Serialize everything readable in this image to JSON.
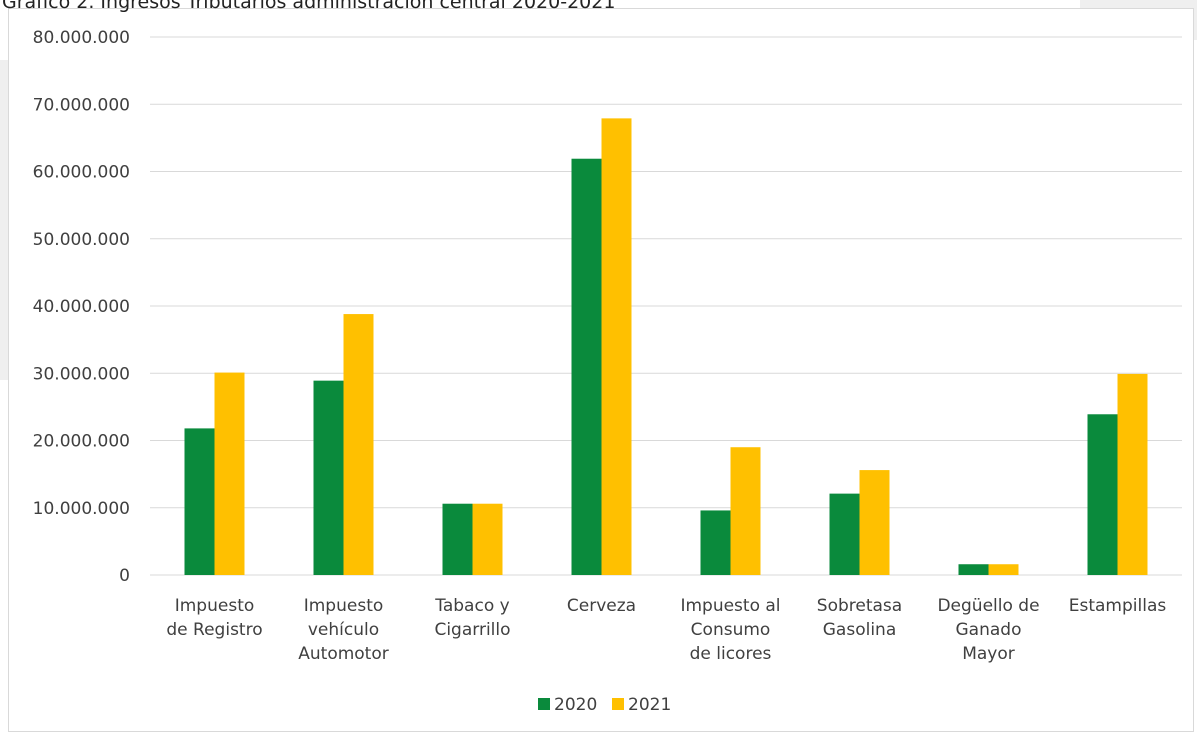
{
  "caption": "Gráfico 2. Ingresos Tributarios administración central 2020-2021",
  "colors": {
    "series_2020": "#0a8a3c",
    "series_2021": "#ffc000",
    "grid": "#d9d9d9",
    "axis_text": "#404040"
  },
  "chart_data": {
    "type": "bar",
    "categories": [
      [
        "Impuesto",
        "de Registro"
      ],
      [
        "Impuesto",
        "vehículo",
        "Automotor"
      ],
      [
        "Tabaco y",
        "Cigarrillo"
      ],
      [
        "Cerveza"
      ],
      [
        "Impuesto al",
        "Consumo",
        "de licores"
      ],
      [
        "Sobretasa",
        "Gasolina"
      ],
      [
        "Degüello de",
        "Ganado",
        "Mayor"
      ],
      [
        "Estampillas"
      ]
    ],
    "series": [
      {
        "name": "2020",
        "color": "#0a8a3c",
        "values": [
          21800000,
          28900000,
          10600000,
          61900000,
          9600000,
          12100000,
          1600000,
          23900000
        ]
      },
      {
        "name": "2021",
        "color": "#ffc000",
        "values": [
          30100000,
          38800000,
          10600000,
          67900000,
          19000000,
          15600000,
          1600000,
          29900000
        ]
      }
    ],
    "yticks": [
      "0",
      "10.000.000",
      "20.000.000",
      "30.000.000",
      "40.000.000",
      "50.000.000",
      "60.000.000",
      "70.000.000",
      "80.000.000"
    ],
    "ylim": [
      0,
      80000000
    ],
    "grid": true,
    "legend_position": "bottom"
  }
}
